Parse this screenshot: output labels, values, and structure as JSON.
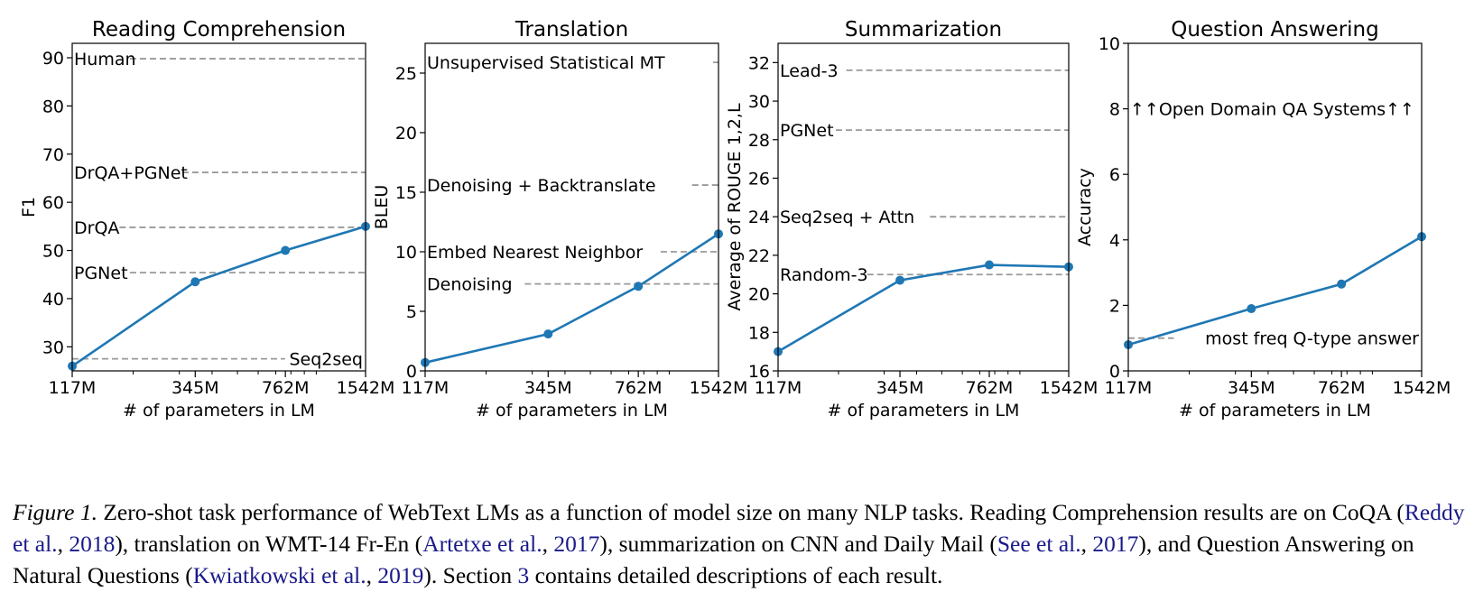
{
  "chart_data": [
    {
      "type": "line",
      "title": "Reading Comprehension",
      "xlabel": "# of parameters in LM",
      "ylabel": "F1",
      "xscale": "log",
      "x_ticks": [
        117,
        345,
        762,
        1542
      ],
      "x_tick_labels": [
        "117M",
        "345M",
        "762M",
        "1542M"
      ],
      "ylim": [
        25,
        93
      ],
      "y_ticks": [
        30,
        40,
        50,
        60,
        70,
        80,
        90
      ],
      "x": [
        117,
        345,
        762,
        1542
      ],
      "values": [
        26,
        43.5,
        50,
        55
      ],
      "color": "#1f77b4",
      "baselines": [
        {
          "label": "Human",
          "value": 89.8,
          "align": "left"
        },
        {
          "label": "DrQA+PGNet",
          "value": 66.2,
          "align": "left"
        },
        {
          "label": "DrQA",
          "value": 54.8,
          "align": "left"
        },
        {
          "label": "PGNet",
          "value": 45.4,
          "align": "left"
        },
        {
          "label": "Seq2seq",
          "value": 27.5,
          "align": "right"
        }
      ]
    },
    {
      "type": "line",
      "title": "Translation",
      "xlabel": "# of parameters in LM",
      "ylabel": "BLEU",
      "xscale": "log",
      "x_ticks": [
        117,
        345,
        762,
        1542
      ],
      "x_tick_labels": [
        "117M",
        "345M",
        "762M",
        "1542M"
      ],
      "ylim": [
        0,
        27.5
      ],
      "y_ticks": [
        0,
        5,
        10,
        15,
        20,
        25
      ],
      "x": [
        117,
        345,
        762,
        1542
      ],
      "values": [
        0.7,
        3.1,
        7.1,
        11.5
      ],
      "color": "#1f77b4",
      "baselines": [
        {
          "label": "Unsupervised Statistical MT",
          "value": 25.9,
          "align": "left"
        },
        {
          "label": "Denoising + Backtranslate",
          "value": 15.6,
          "align": "left"
        },
        {
          "label": "Embed Nearest Neighbor",
          "value": 10.0,
          "align": "left"
        },
        {
          "label": "Denoising",
          "value": 7.3,
          "align": "left"
        }
      ]
    },
    {
      "type": "line",
      "title": "Summarization",
      "xlabel": "# of parameters in LM",
      "ylabel": "Average of ROUGE 1,2,L",
      "xscale": "log",
      "x_ticks": [
        117,
        345,
        762,
        1542
      ],
      "x_tick_labels": [
        "117M",
        "345M",
        "762M",
        "1542M"
      ],
      "ylim": [
        16,
        33
      ],
      "y_ticks": [
        16,
        18,
        20,
        22,
        24,
        26,
        28,
        30,
        32
      ],
      "x": [
        117,
        345,
        762,
        1542
      ],
      "values": [
        17.0,
        20.7,
        21.5,
        21.4
      ],
      "color": "#1f77b4",
      "baselines": [
        {
          "label": "Lead-3",
          "value": 31.6,
          "align": "left"
        },
        {
          "label": "PGNet",
          "value": 28.5,
          "align": "left"
        },
        {
          "label": "Seq2seq + Attn",
          "value": 24.0,
          "align": "left"
        },
        {
          "label": "Random-3",
          "value": 21.0,
          "align": "left"
        }
      ]
    },
    {
      "type": "line",
      "title": "Question Answering",
      "xlabel": "# of parameters in LM",
      "ylabel": "Accuracy",
      "xscale": "log",
      "x_ticks": [
        117,
        345,
        762,
        1542
      ],
      "x_tick_labels": [
        "117M",
        "345M",
        "762M",
        "1542M"
      ],
      "ylim": [
        0,
        10
      ],
      "y_ticks": [
        0,
        2,
        4,
        6,
        8,
        10
      ],
      "x": [
        117,
        345,
        762,
        1542
      ],
      "values": [
        0.8,
        1.9,
        2.65,
        4.1
      ],
      "color": "#1f77b4",
      "annotations": [
        {
          "text": "↑↑Open Domain QA Systems↑↑",
          "value": 8
        }
      ],
      "baselines": [
        {
          "label": "most freq Q-type answer",
          "value": 1.0,
          "align": "right"
        }
      ]
    }
  ],
  "caption": {
    "label": "Figure 1.",
    "parts": [
      {
        "text": " Zero-shot task performance of WebText LMs as a function of model size on many NLP tasks. Reading Comprehension results are on CoQA (",
        "ref": false
      },
      {
        "text": "Reddy et al.",
        "ref": true
      },
      {
        "text": ", ",
        "ref": false
      },
      {
        "text": "2018",
        "ref": true
      },
      {
        "text": "), translation on WMT-14 Fr-En (",
        "ref": false
      },
      {
        "text": "Artetxe et al.",
        "ref": true
      },
      {
        "text": ", ",
        "ref": false
      },
      {
        "text": "2017",
        "ref": true
      },
      {
        "text": "), summarization on CNN and Daily Mail (",
        "ref": false
      },
      {
        "text": "See et al.",
        "ref": true
      },
      {
        "text": ", ",
        "ref": false
      },
      {
        "text": "2017",
        "ref": true
      },
      {
        "text": "), and Question Answering on Natural Questions (",
        "ref": false
      },
      {
        "text": "Kwiatkowski et al.",
        "ref": true
      },
      {
        "text": ", ",
        "ref": false
      },
      {
        "text": "2019",
        "ref": true
      },
      {
        "text": "). Section ",
        "ref": false
      },
      {
        "text": "3",
        "ref": true
      },
      {
        "text": " contains detailed descriptions of each result.",
        "ref": false
      }
    ]
  }
}
